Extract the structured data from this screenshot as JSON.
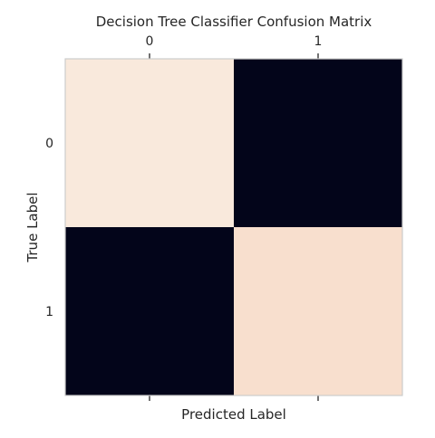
{
  "chart_data": {
    "type": "heatmap",
    "title": "Decision Tree Classifier Confusion Matrix",
    "xlabel": "Predicted Label",
    "ylabel": "True Label",
    "x_categories": [
      "0",
      "1"
    ],
    "y_categories": [
      "0",
      "1"
    ],
    "values": [
      [
        0.97,
        0.0
      ],
      [
        0.0,
        1.0
      ]
    ],
    "x_ticklabel_position": "top",
    "colormap": "rocket",
    "colors": {
      "low": "#03051a",
      "high": "#f9e6d8",
      "diag_tl": "#f9e9dc",
      "diag_br": "#f8dfce",
      "frame": "#cccccc",
      "text": "#262626"
    },
    "grid": false,
    "legend": "none"
  }
}
